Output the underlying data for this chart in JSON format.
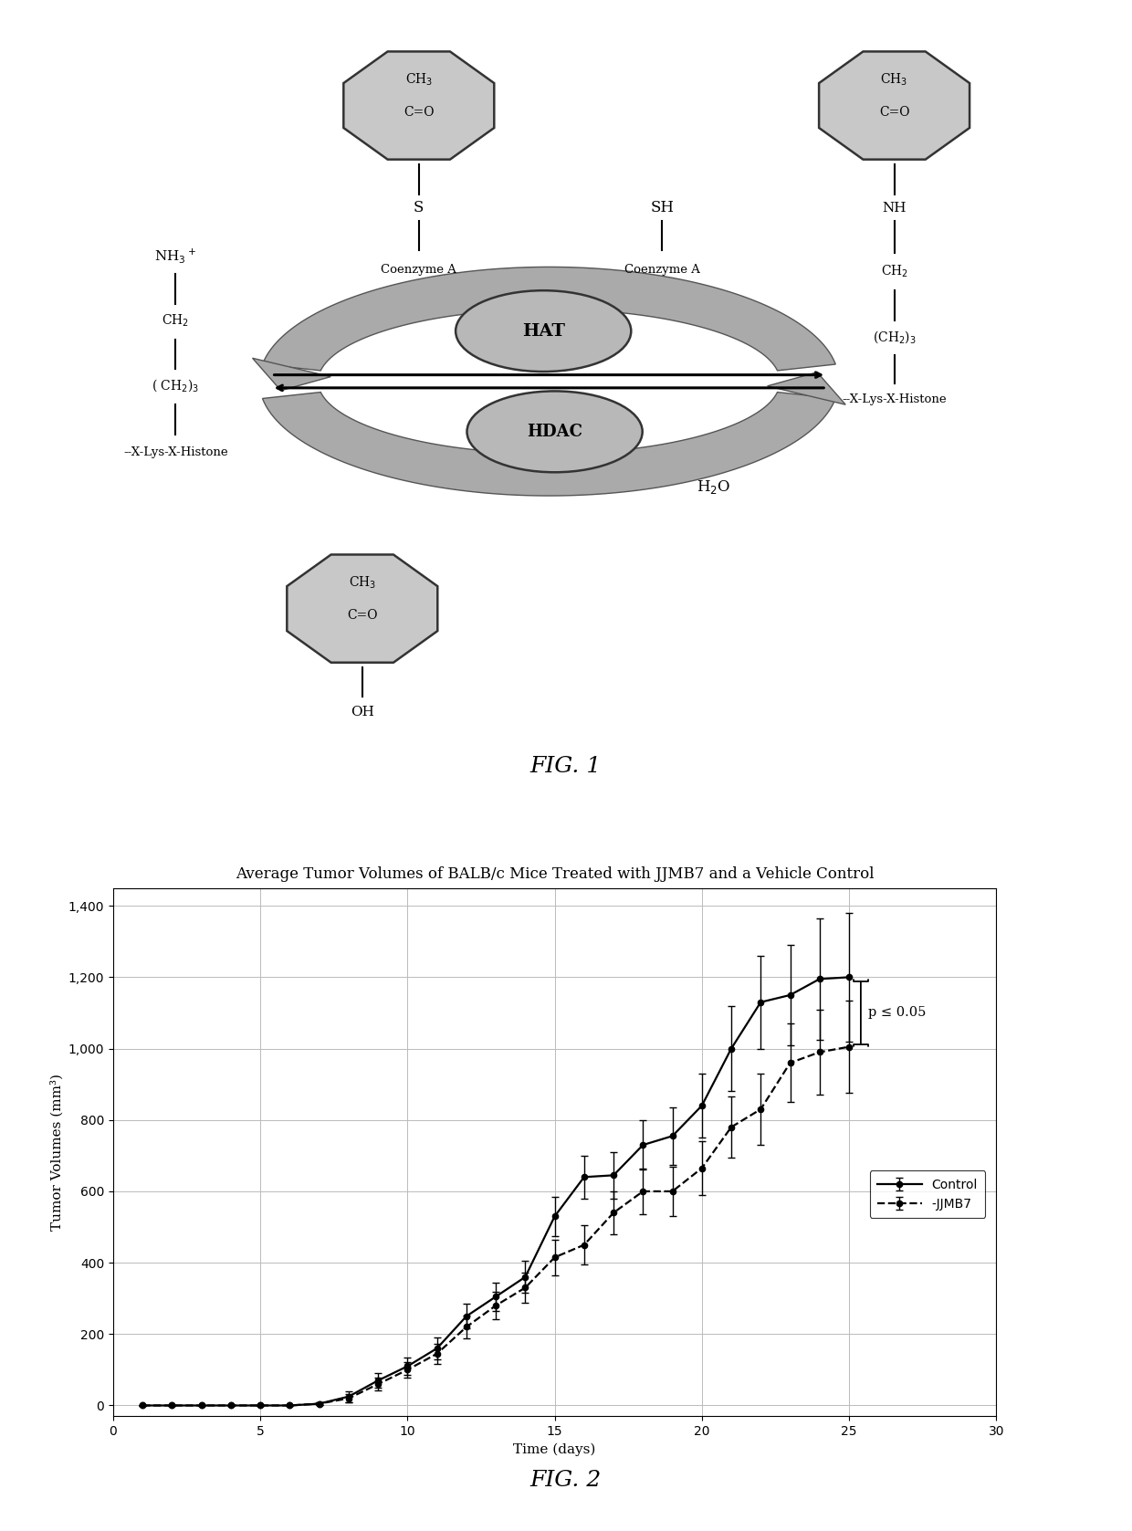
{
  "fig1_label": "FIG. 1",
  "fig2_label": "FIG. 2",
  "chart_title": "Average Tumor Volumes of BALB/c Mice Treated with JJMB7 and a Vehicle Control",
  "xlabel": "Time (days)",
  "ylabel": "Tumor Volumes (mm³)",
  "xlim": [
    0,
    30
  ],
  "ylim": [
    -30,
    1450
  ],
  "xticks": [
    0,
    5,
    10,
    15,
    20,
    25,
    30
  ],
  "yticks": [
    0,
    200,
    400,
    600,
    800,
    1000,
    1200,
    1400
  ],
  "ytick_labels": [
    "0",
    "200",
    "400",
    "600",
    "800",
    "1,000",
    "1,200",
    "1,400"
  ],
  "control_x": [
    1,
    2,
    3,
    4,
    5,
    6,
    7,
    8,
    9,
    10,
    11,
    12,
    13,
    14,
    15,
    16,
    17,
    18,
    19,
    20,
    21,
    22,
    23,
    24,
    25
  ],
  "control_y": [
    0,
    0,
    0,
    0,
    0,
    0,
    5,
    25,
    70,
    110,
    160,
    250,
    305,
    360,
    530,
    640,
    645,
    730,
    755,
    840,
    1000,
    1130,
    1150,
    1195,
    1200
  ],
  "control_yerr": [
    2,
    2,
    2,
    2,
    2,
    2,
    5,
    15,
    20,
    25,
    30,
    35,
    40,
    45,
    55,
    60,
    65,
    70,
    80,
    90,
    120,
    130,
    140,
    170,
    180
  ],
  "jjmb7_x": [
    1,
    2,
    3,
    4,
    5,
    6,
    7,
    8,
    9,
    10,
    11,
    12,
    13,
    14,
    15,
    16,
    17,
    18,
    19,
    20,
    21,
    22,
    23,
    24,
    25
  ],
  "jjmb7_y": [
    0,
    0,
    0,
    0,
    0,
    0,
    5,
    20,
    60,
    100,
    145,
    220,
    280,
    330,
    415,
    450,
    540,
    600,
    600,
    665,
    780,
    830,
    960,
    990,
    1005
  ],
  "jjmb7_yerr": [
    2,
    2,
    2,
    2,
    2,
    2,
    5,
    12,
    18,
    22,
    28,
    32,
    38,
    42,
    50,
    55,
    60,
    65,
    70,
    75,
    85,
    100,
    110,
    120,
    130
  ],
  "octagon_fc": "#c8c8c8",
  "octagon_ec": "#333333",
  "hat_fc": "#b8b8b8",
  "hdac_fc": "#b8b8b8",
  "arrow_fc": "#888888",
  "arrow_ec": "#555555",
  "control_color": "#000000",
  "jjmb7_color": "#000000",
  "p_value_text": "p ≤ 0.05",
  "grid_color": "#bbbbbb",
  "legend_control": "Control",
  "legend_jjmb7": "-JJMB7"
}
